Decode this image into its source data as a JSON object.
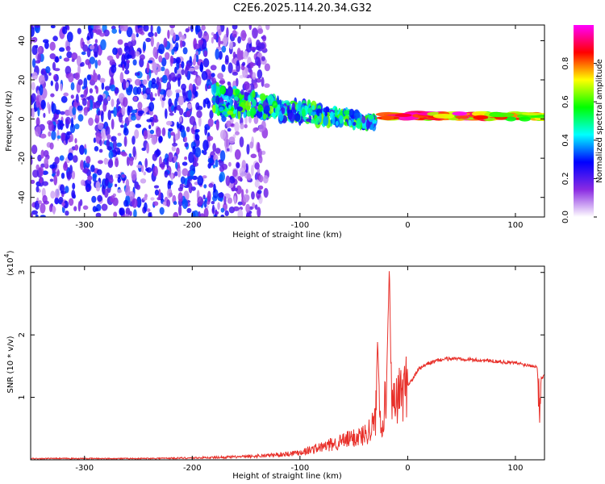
{
  "title": "C2E6.2025.114.20.34.G32",
  "chart_data": [
    {
      "type": "heatmap",
      "title": "C2E6.2025.114.20.34.G32",
      "xlabel": "Height of straight line (km)",
      "ylabel": "Frequency (Hz)",
      "xlim": [
        -350,
        127
      ],
      "ylim": [
        -50,
        48
      ],
      "xticks": [
        -300,
        -200,
        -100,
        0,
        100
      ],
      "yticks": [
        -40,
        -20,
        0,
        20,
        40
      ],
      "colorbar": {
        "label": "Normalized spectral amplitude",
        "range": [
          0,
          1
        ],
        "ticks": [
          0.0,
          0.2,
          0.4,
          0.6,
          0.8
        ],
        "colors": [
          "#ffffff",
          "#8a2be2",
          "#0000ff",
          "#00ffff",
          "#00ff00",
          "#ffff00",
          "#ff0000",
          "#ff00ff"
        ]
      },
      "regions": [
        {
          "desc": "broadband noise",
          "x": [
            -350,
            -130
          ],
          "freq": [
            -50,
            48
          ],
          "amplitude": 0.15
        },
        {
          "desc": "signal band",
          "x": [
            -180,
            -30
          ],
          "freq": [
            -10,
            15
          ],
          "amplitude": 0.35
        },
        {
          "desc": "strong carrier",
          "x": [
            -20,
            127
          ],
          "freq": [
            0,
            3
          ],
          "amplitude": 0.95
        }
      ]
    },
    {
      "type": "line",
      "xlabel": "Height of straight line (km)",
      "ylabel": "SNR (10 * v/v)",
      "scale_label": "(x10",
      "scale_exponent": "4",
      "xlim": [
        -350,
        127
      ],
      "ylim": [
        0,
        3.1
      ],
      "xticks": [
        -300,
        -200,
        -100,
        0,
        100
      ],
      "yticks": [
        1,
        2,
        3
      ],
      "series": [
        {
          "color": "#e8302a",
          "x": [
            -350,
            -300,
            -250,
            -200,
            -150,
            -120,
            -100,
            -80,
            -60,
            -50,
            -40,
            -35,
            -30,
            -28,
            -25,
            -20,
            -17,
            -15,
            -12,
            -10,
            -5,
            0,
            5,
            10,
            20,
            30,
            40,
            50,
            60,
            80,
            100,
            110,
            120,
            122,
            124,
            127
          ],
          "y": [
            0.02,
            0.02,
            0.02,
            0.03,
            0.05,
            0.08,
            0.12,
            0.2,
            0.3,
            0.35,
            0.4,
            0.5,
            0.6,
            1.9,
            0.5,
            1.0,
            3.1,
            0.8,
            0.9,
            1.0,
            1.1,
            1.2,
            1.3,
            1.45,
            1.55,
            1.6,
            1.62,
            1.62,
            1.6,
            1.58,
            1.55,
            1.52,
            1.5,
            1.0,
            1.3,
            1.35
          ]
        }
      ]
    }
  ]
}
